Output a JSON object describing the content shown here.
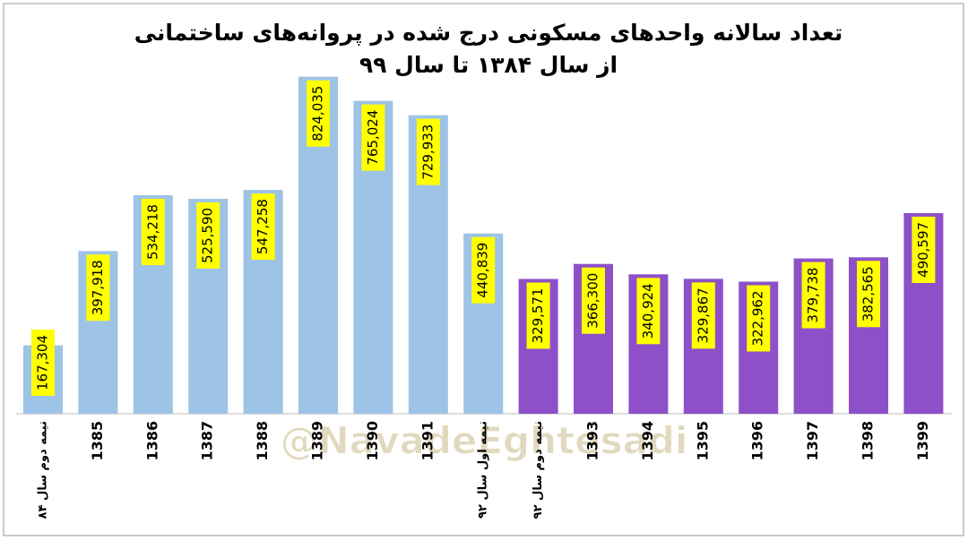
{
  "chart_data": {
    "type": "bar",
    "title": [
      "تعداد سالانه واحدهای مسکونی درج شده در پروانه‌های ساختمانی",
      "از سال ۱۳۸۴ تا سال ۹۹"
    ],
    "categories": [
      "نیمه دوم سال ۸۴",
      "1385",
      "1386",
      "1387",
      "1388",
      "1389",
      "1390",
      "1391",
      "نیمه اول سال ۹۲",
      "نیمه دوم سال ۹۲",
      "1393",
      "1394",
      "1395",
      "1396",
      "1397",
      "1398",
      "1399"
    ],
    "values": [
      167304,
      397918,
      534218,
      525590,
      547258,
      824035,
      765024,
      729933,
      440839,
      329571,
      366300,
      340924,
      329867,
      322962,
      379738,
      382565,
      490597
    ],
    "value_labels": [
      "167,304",
      "397,918",
      "534,218",
      "525,590",
      "547,258",
      "824,035",
      "765,024",
      "729,933",
      "440,839",
      "329,571",
      "366,300",
      "340,924",
      "329,867",
      "322,962",
      "379,738",
      "382,565",
      "490,597"
    ],
    "colors": [
      "#9dc3e6",
      "#9dc3e6",
      "#9dc3e6",
      "#9dc3e6",
      "#9dc3e6",
      "#9dc3e6",
      "#9dc3e6",
      "#9dc3e6",
      "#9dc3e6",
      "#8e50c8",
      "#8e50c8",
      "#8e50c8",
      "#8e50c8",
      "#8e50c8",
      "#8e50c8",
      "#8e50c8",
      "#8e50c8"
    ],
    "label_box_color": "#ffff00",
    "ylim": [
      0,
      900000
    ],
    "watermark": "@NavadeEghtesadi"
  }
}
